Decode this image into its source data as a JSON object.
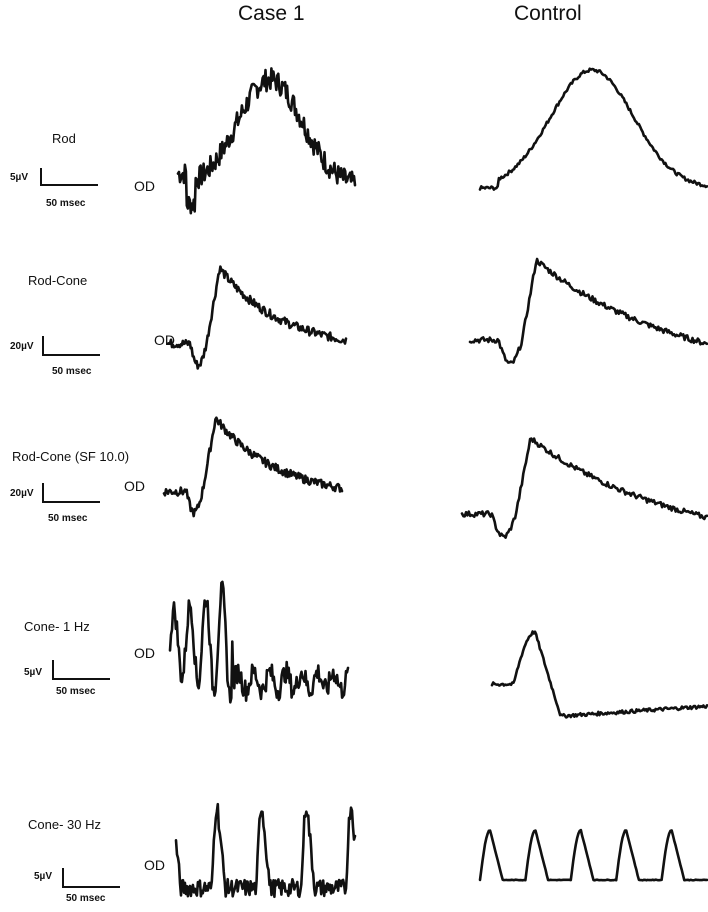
{
  "figure": {
    "columns": [
      "Case 1",
      "Control"
    ]
  },
  "rows": [
    {
      "label": "Rod",
      "eye": "OD",
      "amplitude_scale": "5µV",
      "time_scale": "50 msec"
    },
    {
      "label": "Rod-Cone",
      "eye": "OD",
      "amplitude_scale": "20µV",
      "time_scale": "50 msec"
    },
    {
      "label": "Rod-Cone (SF 10.0)",
      "eye": "OD",
      "amplitude_scale": "20µV",
      "time_scale": "50 msec"
    },
    {
      "label": "Cone- 1 Hz",
      "eye": "OD",
      "amplitude_scale": "5µV",
      "time_scale": "50 msec"
    },
    {
      "label": "Cone- 30 Hz",
      "eye": "OD",
      "amplitude_scale": "5µV",
      "time_scale": "50 msec"
    }
  ],
  "chart_data": {
    "type": "line",
    "panels": [
      {
        "row": "Rod",
        "column": "Case 1",
        "waveform": "rod_response_noisy",
        "noise": 0.35
      },
      {
        "row": "Rod",
        "column": "Control",
        "waveform": "rod_response",
        "noise": 0.05
      },
      {
        "row": "Rod-Cone",
        "column": "Case 1",
        "waveform": "mixed_response_noisy",
        "noise": 0.2
      },
      {
        "row": "Rod-Cone",
        "column": "Control",
        "waveform": "mixed_response",
        "noise": 0.12
      },
      {
        "row": "Rod-Cone (SF 10.0)",
        "column": "Case 1",
        "waveform": "mixed_response_noisy",
        "noise": 0.2
      },
      {
        "row": "Rod-Cone (SF 10.0)",
        "column": "Control",
        "waveform": "mixed_response",
        "noise": 0.12
      },
      {
        "row": "Cone- 1 Hz",
        "column": "Case 1",
        "waveform": "cone_oscillating_noisy",
        "noise": 0.6
      },
      {
        "row": "Cone- 1 Hz",
        "column": "Control",
        "waveform": "cone_single_flash",
        "noise": 0.1
      },
      {
        "row": "Cone- 30 Hz",
        "column": "Case 1",
        "waveform": "flicker_30hz_noisy",
        "peaks": 4,
        "noise": 0.35
      },
      {
        "row": "Cone- 30 Hz",
        "column": "Control",
        "waveform": "flicker_30hz",
        "peaks": 5,
        "noise": 0.02
      }
    ]
  }
}
